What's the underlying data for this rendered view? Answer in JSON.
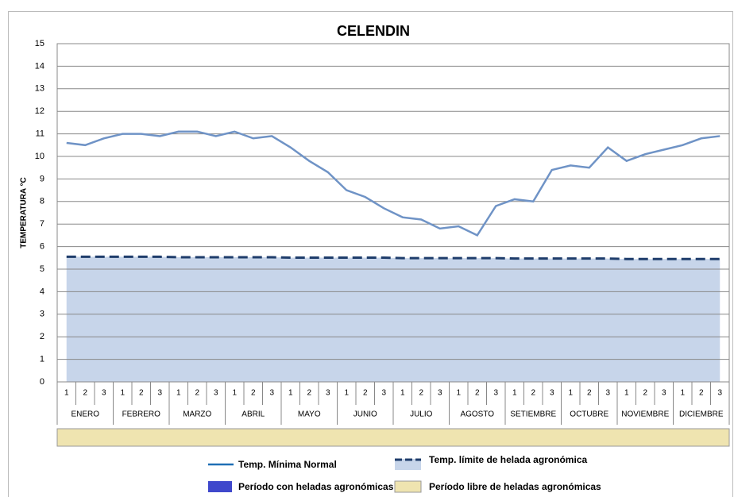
{
  "chart_data": {
    "type": "line",
    "title": "CELENDIN",
    "y_label": "TEMPERATURA °C",
    "categories": [
      "1",
      "2",
      "3",
      "1",
      "2",
      "3",
      "1",
      "2",
      "3",
      "1",
      "2",
      "3",
      "1",
      "2",
      "3",
      "1",
      "2",
      "3",
      "1",
      "2",
      "3",
      "1",
      "2",
      "3",
      "1",
      "2",
      "3",
      "1",
      "2",
      "3",
      "1",
      "2",
      "3",
      "1",
      "2",
      "3"
    ],
    "months": [
      "ENERO",
      "FEBRERO",
      "MARZO",
      "ABRIL",
      "MAYO",
      "JUNIO",
      "JULIO",
      "AGOSTO",
      "SETIEMBRE",
      "OCTUBRE",
      "NOVIEMBRE",
      "DICIEMBRE"
    ],
    "ylim": [
      0,
      15
    ],
    "yticks": [
      0,
      1,
      2,
      3,
      4,
      5,
      6,
      7,
      8,
      9,
      10,
      11,
      12,
      13,
      14,
      15
    ],
    "grid": true,
    "series": [
      {
        "name": "Temp. Mínima Normal",
        "color": "#6f93c6",
        "values": [
          10.6,
          10.5,
          10.8,
          11.0,
          11.0,
          10.9,
          11.1,
          11.1,
          10.9,
          11.1,
          10.8,
          10.9,
          10.4,
          9.8,
          9.3,
          8.5,
          8.2,
          7.7,
          7.3,
          7.2,
          6.8,
          6.9,
          6.5,
          7.8,
          8.1,
          8.0,
          9.4,
          9.6,
          9.5,
          10.4,
          9.8,
          10.1,
          10.3,
          10.5,
          10.8,
          10.9
        ]
      },
      {
        "name": "Temp. límite de helada agronómica",
        "color": "#1f3d6b",
        "dashed": true,
        "fill": "#c7d5ea",
        "values": [
          5.55,
          5.55,
          5.55,
          5.55,
          5.55,
          5.55,
          5.53,
          5.53,
          5.53,
          5.53,
          5.53,
          5.53,
          5.51,
          5.51,
          5.51,
          5.51,
          5.51,
          5.51,
          5.49,
          5.49,
          5.49,
          5.49,
          5.49,
          5.49,
          5.47,
          5.47,
          5.47,
          5.47,
          5.47,
          5.47,
          5.45,
          5.45,
          5.45,
          5.45,
          5.45,
          5.45
        ]
      }
    ],
    "periods": [
      {
        "name": "Período con heladas agronómicas",
        "color": "#3f48cc"
      },
      {
        "name": "Período libre de heladas agronómicas",
        "color": "#efe4b0"
      }
    ]
  }
}
